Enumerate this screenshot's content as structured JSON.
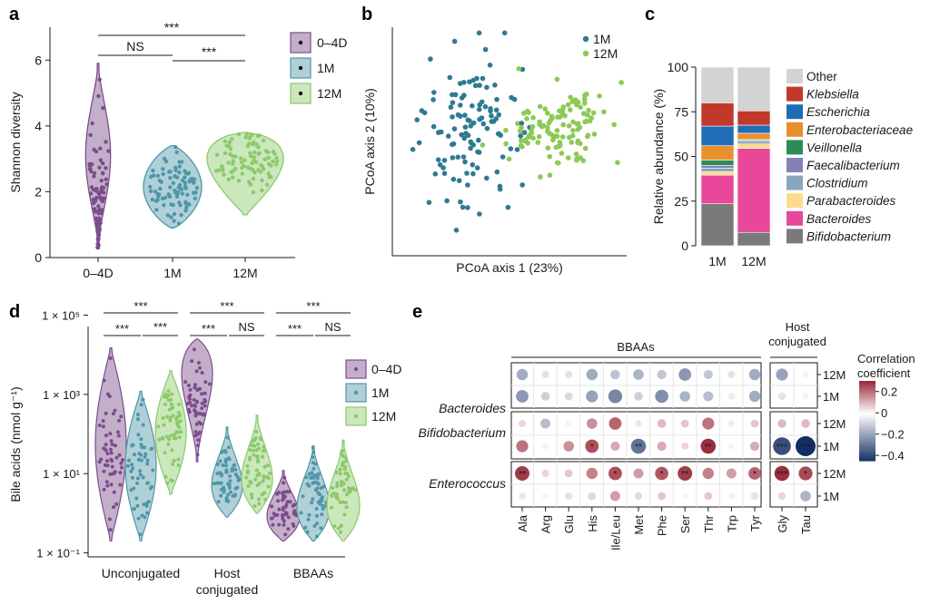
{
  "panel_labels": [
    "a",
    "b",
    "c",
    "d",
    "e"
  ],
  "chart_data": [
    {
      "panel": "a",
      "type": "violin",
      "title": "",
      "xlabel": "",
      "ylabel": "Shannon diversity",
      "categories": [
        "0–4D",
        "1M",
        "12M"
      ],
      "ylim": [
        0,
        7
      ],
      "yticks": [
        "0",
        "2",
        "4",
        "6"
      ],
      "groups": [
        {
          "name": "0–4D",
          "min": 0.3,
          "max": 5.9,
          "median": 1.8,
          "color": "#7b4d8c"
        },
        {
          "name": "1M",
          "min": 0.9,
          "max": 3.4,
          "median": 2.2,
          "color": "#4f96a8"
        },
        {
          "name": "12M",
          "min": 1.3,
          "max": 3.8,
          "median": 3.0,
          "color": "#8cc96a"
        }
      ],
      "legend": [
        "0–4D",
        "1M",
        "12M"
      ],
      "significance": [
        {
          "pair": [
            "0–4D",
            "12M"
          ],
          "label": "***"
        },
        {
          "pair": [
            "0–4D",
            "1M"
          ],
          "label": "NS"
        },
        {
          "pair": [
            "1M",
            "12M"
          ],
          "label": "***"
        }
      ]
    },
    {
      "panel": "b",
      "type": "scatter",
      "xlabel": "PCoA axis 1 (23%)",
      "ylabel": "PCoA axis 2 (10%)",
      "legend": [
        {
          "name": "1M",
          "color": "#2e7b91"
        },
        {
          "name": "12M",
          "color": "#8cc955"
        }
      ],
      "series": [
        {
          "name": "1M",
          "center": [
            -0.35,
            0.15
          ],
          "spread": [
            0.35,
            0.55
          ]
        },
        {
          "name": "12M",
          "center": [
            0.45,
            0.1
          ],
          "spread": [
            0.45,
            0.4
          ]
        }
      ]
    },
    {
      "panel": "c",
      "type": "stacked-bar",
      "ylabel": "Relative abundance (%)",
      "categories": [
        "1M",
        "12M"
      ],
      "ylim": [
        0,
        100
      ],
      "yticks": [
        "0",
        "25",
        "50",
        "75",
        "100"
      ],
      "series": [
        {
          "name": "Bifidobacterium",
          "values": [
            23.5,
            7.5
          ],
          "color": "#7a7a7a"
        },
        {
          "name": "Bacteroides",
          "values": [
            16,
            47
          ],
          "color": "#e8479a"
        },
        {
          "name": "Parabacteroides",
          "values": [
            2,
            2.5
          ],
          "color": "#fbdc8c"
        },
        {
          "name": "Clostridium",
          "values": [
            2,
            1.5
          ],
          "color": "#8aa6ba"
        },
        {
          "name": "Faecalibacterium",
          "values": [
            1.5,
            0.5
          ],
          "color": "#8480b8"
        },
        {
          "name": "Veillonella",
          "values": [
            3,
            0.5
          ],
          "color": "#2e8b57"
        },
        {
          "name": "Enterobacteriaceae",
          "values": [
            8,
            3.5
          ],
          "color": "#e8902c"
        },
        {
          "name": "Escherichia",
          "values": [
            11,
            4.5
          ],
          "color": "#1f6db5"
        },
        {
          "name": "Klebsiella",
          "values": [
            13,
            8
          ],
          "color": "#c0392b"
        },
        {
          "name": "Other",
          "values": [
            20,
            24.5
          ],
          "color": "#d3d3d3"
        }
      ],
      "legend_order": [
        "Other",
        "Klebsiella",
        "Escherichia",
        "Enterobacteriaceae",
        "Veillonella",
        "Faecalibacterium",
        "Clostridium",
        "Parabacteroides",
        "Bacteroides",
        "Bifidobacterium"
      ],
      "legend_italic": [
        false,
        true,
        true,
        true,
        true,
        true,
        true,
        true,
        true,
        true
      ]
    },
    {
      "panel": "d",
      "type": "violin",
      "ylabel": "Bile acids (nmol g⁻¹)",
      "yscale": "log",
      "yticks": [
        {
          "value": 0.1,
          "label": "1 × 10⁻¹"
        },
        {
          "value": 10,
          "label": "1 × 10¹"
        },
        {
          "value": 1000,
          "label": "1 × 10³"
        },
        {
          "value": 100000,
          "label": "1 × 10⁵"
        }
      ],
      "categories": [
        "Unconjugated",
        "Host conjugated",
        "BBAAs"
      ],
      "category_lines": [
        [
          "Unconjugated"
        ],
        [
          "Host",
          "conjugated"
        ],
        [
          "BBAAs"
        ]
      ],
      "groups": [
        "0–4D",
        "1M",
        "12M"
      ],
      "colors": [
        "#7b4d8c",
        "#4f96a8",
        "#8cc96a"
      ],
      "ranges": [
        [
          [
            0.2,
            15000
          ],
          [
            0.2,
            1200
          ],
          [
            3,
            4000
          ]
        ],
        [
          [
            20,
            25000
          ],
          [
            0.8,
            150
          ],
          [
            1,
            300
          ]
        ],
        [
          [
            0.2,
            12
          ],
          [
            0.2,
            50
          ],
          [
            0.2,
            70
          ]
        ]
      ],
      "legend": [
        "0–4D",
        "1M",
        "12M"
      ],
      "significance": [
        [
          "***",
          "***",
          "***"
        ],
        [
          "***",
          "***",
          "NS"
        ],
        [
          "***",
          "***",
          "NS"
        ]
      ]
    },
    {
      "panel": "e",
      "type": "heatmap",
      "header_bbaas": "BBAAs",
      "header_host": "Host conjugated",
      "header_host_lines": [
        "Host",
        "conjugated"
      ],
      "columns_bbaas": [
        "Ala",
        "Arg",
        "Glu",
        "His",
        "Ile/Leu",
        "Met",
        "Phe",
        "Ser",
        "Thr",
        "Trp",
        "Tyr"
      ],
      "columns_host": [
        "Gly",
        "Tau"
      ],
      "taxa": [
        "Bacteroides",
        "Bifidobacterium",
        "Enterococcus"
      ],
      "time_labels": [
        "12M",
        "1M"
      ],
      "colorbar_title": "Correlation coefficient",
      "colorbar_title_lines": [
        "Correlation",
        "coefficient"
      ],
      "colorbar_range": [
        -0.45,
        0.3
      ],
      "colorbar_ticks": [
        "0.2",
        "0",
        "−0.2",
        "−0.4"
      ],
      "rows": [
        {
          "taxon": "Bacteroides",
          "time": "12M",
          "values": [
            -0.18,
            0.05,
            -0.06,
            -0.18,
            -0.13,
            -0.16,
            -0.12,
            -0.22,
            -0.12,
            -0.06,
            -0.18,
            -0.2,
            0.02
          ],
          "stars": [
            "",
            "",
            "",
            "",
            "",
            "",
            "",
            "",
            "",
            "",
            "",
            "",
            ""
          ]
        },
        {
          "taxon": "Bacteroides",
          "time": "1M",
          "values": [
            -0.22,
            -0.1,
            -0.08,
            -0.2,
            -0.26,
            -0.1,
            -0.24,
            -0.16,
            -0.14,
            -0.04,
            -0.18,
            -0.06,
            0.02
          ],
          "stars": [
            "",
            "",
            "",
            "",
            "",
            "",
            "",
            "",
            "",
            "",
            "",
            "",
            ""
          ]
        },
        {
          "taxon": "Bifidobacterium",
          "time": "12M",
          "values": [
            0.06,
            -0.14,
            0.02,
            0.16,
            0.22,
            0.04,
            0.1,
            0.08,
            0.2,
            0.03,
            0.08,
            0.1,
            0.1
          ],
          "stars": [
            "",
            "",
            "",
            "",
            "",
            "",
            "",
            "",
            "",
            "",
            "",
            "",
            ""
          ]
        },
        {
          "taxon": "Bifidobacterium",
          "time": "1M",
          "values": [
            0.2,
            0.02,
            0.16,
            0.25,
            0.12,
            -0.3,
            0.12,
            0.06,
            0.3,
            0.02,
            0.12,
            -0.38,
            -0.45
          ],
          "stars": [
            "",
            "",
            "",
            "*",
            "",
            "**",
            "",
            "",
            "**",
            "",
            "",
            "***",
            "***"
          ]
        },
        {
          "taxon": "Enterococcus",
          "time": "12M",
          "values": [
            0.28,
            0.06,
            0.08,
            0.18,
            0.25,
            0.14,
            0.24,
            0.28,
            0.18,
            0.14,
            0.22,
            0.3,
            0.26
          ],
          "stars": [
            "**",
            "",
            "",
            "",
            "*",
            "",
            "*",
            "**",
            "",
            "",
            "*",
            "***",
            "*"
          ]
        },
        {
          "taxon": "Enterococcus",
          "time": "1M",
          "values": [
            0.04,
            0.02,
            -0.06,
            -0.08,
            0.14,
            0.06,
            0.08,
            -0.02,
            0.08,
            0.02,
            -0.06,
            0.06,
            -0.16
          ],
          "stars": [
            "",
            "",
            "",
            "",
            "",
            "",
            "",
            "",
            "",
            "",
            "",
            "",
            ""
          ]
        }
      ]
    }
  ]
}
